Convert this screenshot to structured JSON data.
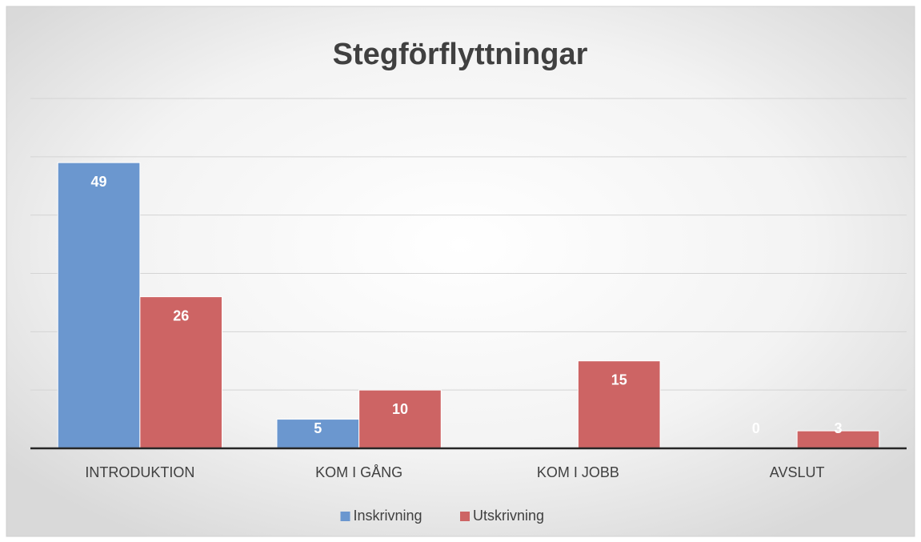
{
  "chart_data": {
    "type": "bar",
    "title": "Stegförflyttningar",
    "categories": [
      "INTRODUKTION",
      "KOM I GÅNG",
      "KOM I JOBB",
      "AVSLUT"
    ],
    "series": [
      {
        "name": "Inskrivning",
        "color": "#6b97cf",
        "values": [
          49,
          5,
          null,
          0
        ]
      },
      {
        "name": "Utskrivning",
        "color": "#cd6464",
        "values": [
          26,
          10,
          15,
          3
        ]
      }
    ],
    "ylim": [
      0,
      60
    ],
    "yticks": [
      0,
      10,
      20,
      30,
      40,
      50,
      60
    ],
    "grid": true,
    "legend": "bottom"
  }
}
